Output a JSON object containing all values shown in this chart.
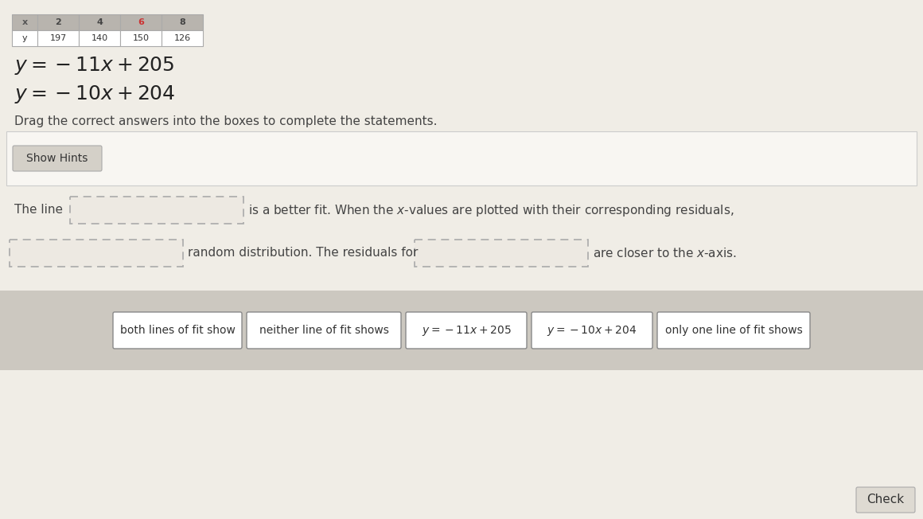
{
  "page_bg": "#f0ede6",
  "table_header_bg": "#b8b4ae",
  "table_value_bg": "#ffffff",
  "table_border": "#aaaaaa",
  "table_x_values": [
    "x",
    "2",
    "4",
    "6",
    "8"
  ],
  "table_y_values": [
    "y",
    "197",
    "140",
    "150",
    "126"
  ],
  "table_x_color": [
    "#555555",
    "#444444",
    "#444444",
    "#cc3333",
    "#444444"
  ],
  "equation1": "$y = -11x + 205$",
  "equation2": "$y = -10x + 204$",
  "drag_instruction": "Drag the correct answers into the boxes to complete the statements.",
  "show_hints_text": "Show Hints",
  "answer_boxes": [
    "both lines of fit show",
    "neither line of fit shows",
    "$y = -11x + 205$",
    "$y = -10x + 204$",
    "only one line of fit shows"
  ],
  "check_text": "Check",
  "hint_area_bg": "#f8f6f2",
  "hint_btn_bg": "#d4d0c8",
  "answer_area_bg": "#ccc8c0",
  "dashed_border": "#aaaaaa",
  "dashed_fill": "#ede9e2",
  "text_color": "#333333"
}
